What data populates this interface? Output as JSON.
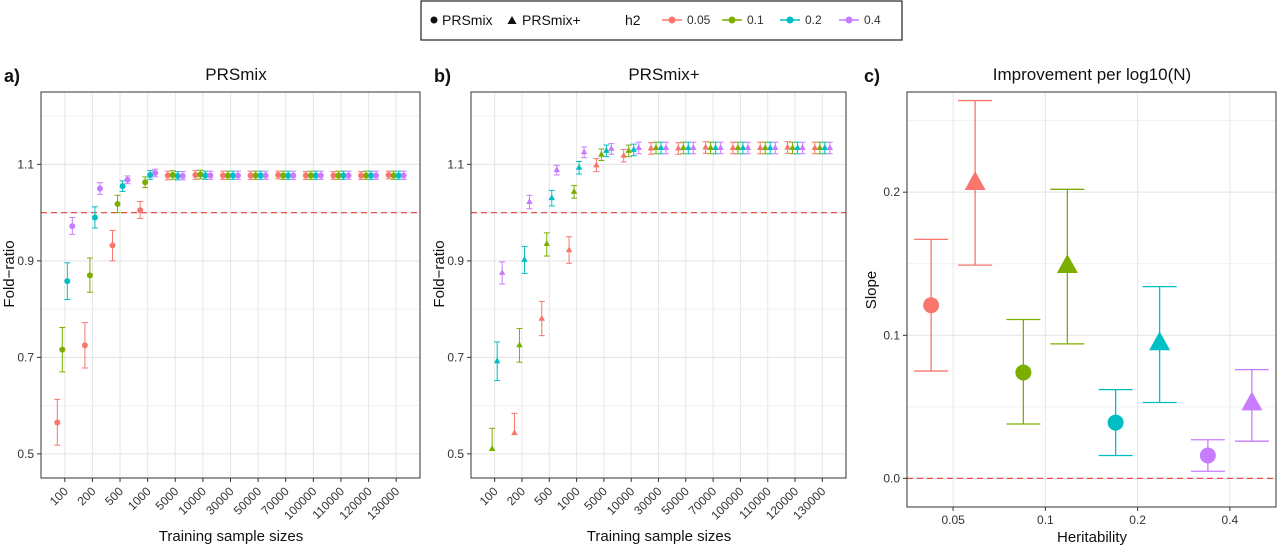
{
  "legend": {
    "shape_items": [
      {
        "label": "PRSmix",
        "shape": "circle"
      },
      {
        "label": "PRSmix+",
        "shape": "triangle"
      }
    ],
    "color_title": "h2",
    "color_items": [
      {
        "label": "0.05",
        "color": "#F8766D"
      },
      {
        "label": "0.1",
        "color": "#7CAE00"
      },
      {
        "label": "0.2",
        "color": "#00BFC4"
      },
      {
        "label": "0.4",
        "color": "#C77CFF"
      }
    ]
  },
  "chart_data": [
    {
      "panel_label": "a)",
      "type": "scatter",
      "title": "PRSmix",
      "xlabel": "Training sample sizes",
      "ylabel": "Fold−ratio",
      "categories": [
        "100",
        "200",
        "500",
        "1000",
        "5000",
        "10000",
        "30000",
        "50000",
        "70000",
        "100000",
        "110000",
        "120000",
        "130000"
      ],
      "ylim": [
        0.45,
        1.25
      ],
      "yticks": [
        "0.5",
        "0.7",
        "0.9",
        "1.1"
      ],
      "yticks_values": [
        0.5,
        0.7,
        0.9,
        1.1
      ],
      "reference_line": 1.0,
      "grid": true,
      "series": [
        {
          "name": "0.05",
          "color": "#F8766D",
          "marker": "circle",
          "values": [
            0.565,
            0.725,
            0.932,
            1.005,
            1.077,
            1.078,
            1.077,
            1.077,
            1.078,
            1.077,
            1.077,
            1.077,
            1.078
          ],
          "lower": [
            0.518,
            0.678,
            0.9,
            0.988,
            1.068,
            1.069,
            1.069,
            1.069,
            1.07,
            1.069,
            1.069,
            1.069,
            1.07
          ],
          "upper": [
            0.613,
            0.772,
            0.963,
            1.023,
            1.086,
            1.087,
            1.086,
            1.086,
            1.086,
            1.085,
            1.085,
            1.085,
            1.086
          ]
        },
        {
          "name": "0.1",
          "color": "#7CAE00",
          "marker": "circle",
          "values": [
            0.716,
            0.87,
            1.018,
            1.063,
            1.078,
            1.079,
            1.077,
            1.077,
            1.077,
            1.077,
            1.077,
            1.077,
            1.077
          ],
          "lower": [
            0.67,
            0.835,
            1.0,
            1.052,
            1.069,
            1.07,
            1.069,
            1.069,
            1.069,
            1.069,
            1.069,
            1.069,
            1.069
          ],
          "upper": [
            0.762,
            0.906,
            1.036,
            1.074,
            1.087,
            1.088,
            1.086,
            1.086,
            1.086,
            1.086,
            1.086,
            1.086,
            1.086
          ]
        },
        {
          "name": "0.2",
          "color": "#00BFC4",
          "marker": "circle",
          "values": [
            0.858,
            0.99,
            1.055,
            1.078,
            1.076,
            1.077,
            1.077,
            1.077,
            1.077,
            1.077,
            1.077,
            1.077,
            1.077
          ],
          "lower": [
            0.82,
            0.968,
            1.044,
            1.069,
            1.068,
            1.069,
            1.069,
            1.069,
            1.069,
            1.069,
            1.069,
            1.069,
            1.069
          ],
          "upper": [
            0.896,
            1.012,
            1.066,
            1.087,
            1.085,
            1.086,
            1.086,
            1.086,
            1.086,
            1.086,
            1.086,
            1.086,
            1.086
          ]
        },
        {
          "name": "0.4",
          "color": "#C77CFF",
          "marker": "circle",
          "values": [
            0.972,
            1.05,
            1.068,
            1.082,
            1.076,
            1.077,
            1.077,
            1.077,
            1.077,
            1.077,
            1.077,
            1.077,
            1.077
          ],
          "lower": [
            0.955,
            1.038,
            1.06,
            1.074,
            1.068,
            1.069,
            1.069,
            1.069,
            1.069,
            1.069,
            1.069,
            1.069,
            1.069
          ],
          "upper": [
            0.99,
            1.062,
            1.076,
            1.09,
            1.085,
            1.086,
            1.086,
            1.086,
            1.086,
            1.086,
            1.086,
            1.086,
            1.086
          ]
        }
      ]
    },
    {
      "panel_label": "b)",
      "type": "scatter",
      "title": "PRSmix+",
      "xlabel": "Training sample sizes",
      "ylabel": "Fold−ratio",
      "categories": [
        "100",
        "200",
        "500",
        "1000",
        "5000",
        "10000",
        "30000",
        "50000",
        "70000",
        "100000",
        "110000",
        "120000",
        "130000"
      ],
      "ylim": [
        0.45,
        1.25
      ],
      "yticks": [
        "0.5",
        "0.7",
        "0.9",
        "1.1"
      ],
      "yticks_values": [
        0.5,
        0.7,
        0.9,
        1.1
      ],
      "reference_line": 1.0,
      "grid": true,
      "series": [
        {
          "name": "0.05",
          "color": "#F8766D",
          "marker": "triangle",
          "values": [
            null,
            0.543,
            0.78,
            0.922,
            1.098,
            1.118,
            1.133,
            1.133,
            1.135,
            1.134,
            1.134,
            1.135,
            1.134
          ],
          "lower": [
            null,
            null,
            0.745,
            0.895,
            1.085,
            1.105,
            1.121,
            1.121,
            1.123,
            1.122,
            1.122,
            1.123,
            1.122
          ],
          "upper": [
            null,
            0.584,
            0.816,
            0.95,
            1.112,
            1.131,
            1.145,
            1.145,
            1.147,
            1.146,
            1.146,
            1.147,
            1.146
          ]
        },
        {
          "name": "0.1",
          "color": "#7CAE00",
          "marker": "triangle",
          "values": [
            0.51,
            0.725,
            0.935,
            1.043,
            1.12,
            1.128,
            1.134,
            1.134,
            1.134,
            1.134,
            1.134,
            1.134,
            1.134
          ],
          "lower": [
            null,
            0.69,
            0.91,
            1.03,
            1.108,
            1.116,
            1.122,
            1.122,
            1.122,
            1.122,
            1.122,
            1.122,
            1.122
          ],
          "upper": [
            0.553,
            0.76,
            0.958,
            1.056,
            1.132,
            1.14,
            1.146,
            1.146,
            1.146,
            1.146,
            1.146,
            1.146,
            1.146
          ]
        },
        {
          "name": "0.2",
          "color": "#00BFC4",
          "marker": "triangle",
          "values": [
            0.692,
            0.902,
            1.03,
            1.093,
            1.128,
            1.13,
            1.134,
            1.134,
            1.134,
            1.134,
            1.134,
            1.134,
            1.134
          ],
          "lower": [
            0.652,
            0.874,
            1.014,
            1.08,
            1.116,
            1.118,
            1.122,
            1.122,
            1.122,
            1.122,
            1.122,
            1.122,
            1.122
          ],
          "upper": [
            0.732,
            0.93,
            1.046,
            1.106,
            1.14,
            1.142,
            1.146,
            1.146,
            1.146,
            1.146,
            1.146,
            1.146,
            1.146
          ]
        },
        {
          "name": "0.4",
          "color": "#C77CFF",
          "marker": "triangle",
          "values": [
            0.875,
            1.022,
            1.088,
            1.125,
            1.132,
            1.134,
            1.134,
            1.134,
            1.134,
            1.134,
            1.134,
            1.134,
            1.134
          ],
          "lower": [
            0.852,
            1.008,
            1.078,
            1.114,
            1.121,
            1.122,
            1.122,
            1.122,
            1.122,
            1.122,
            1.122,
            1.122,
            1.122
          ],
          "upper": [
            0.898,
            1.036,
            1.098,
            1.136,
            1.143,
            1.146,
            1.146,
            1.146,
            1.146,
            1.146,
            1.146,
            1.146,
            1.146
          ]
        }
      ]
    },
    {
      "panel_label": "c)",
      "type": "scatter",
      "title": "Improvement per log10(N)",
      "xlabel": "Heritability",
      "ylabel": "Slope",
      "categories": [
        "0.05",
        "0.1",
        "0.2",
        "0.4"
      ],
      "ylim": [
        -0.02,
        0.27
      ],
      "yticks": [
        "0.0",
        "0.1",
        "0.2"
      ],
      "yticks_values": [
        0.0,
        0.1,
        0.2
      ],
      "reference_line": 0.0,
      "grid": true,
      "points": [
        {
          "h2": "0.05",
          "method": "PRSmix",
          "color": "#F8766D",
          "value": 0.121,
          "lower": 0.075,
          "upper": 0.167
        },
        {
          "h2": "0.05",
          "method": "PRSmix+",
          "color": "#F8766D",
          "value": 0.206,
          "lower": 0.149,
          "upper": 0.264
        },
        {
          "h2": "0.1",
          "method": "PRSmix",
          "color": "#7CAE00",
          "value": 0.074,
          "lower": 0.038,
          "upper": 0.111
        },
        {
          "h2": "0.1",
          "method": "PRSmix+",
          "color": "#7CAE00",
          "value": 0.148,
          "lower": 0.094,
          "upper": 0.202
        },
        {
          "h2": "0.2",
          "method": "PRSmix",
          "color": "#00BFC4",
          "value": 0.039,
          "lower": 0.016,
          "upper": 0.062
        },
        {
          "h2": "0.2",
          "method": "PRSmix+",
          "color": "#00BFC4",
          "value": 0.094,
          "lower": 0.053,
          "upper": 0.134
        },
        {
          "h2": "0.4",
          "method": "PRSmix",
          "color": "#C77CFF",
          "value": 0.016,
          "lower": 0.005,
          "upper": 0.027
        },
        {
          "h2": "0.4",
          "method": "PRSmix+",
          "color": "#C77CFF",
          "value": 0.052,
          "lower": 0.026,
          "upper": 0.076
        }
      ]
    }
  ]
}
